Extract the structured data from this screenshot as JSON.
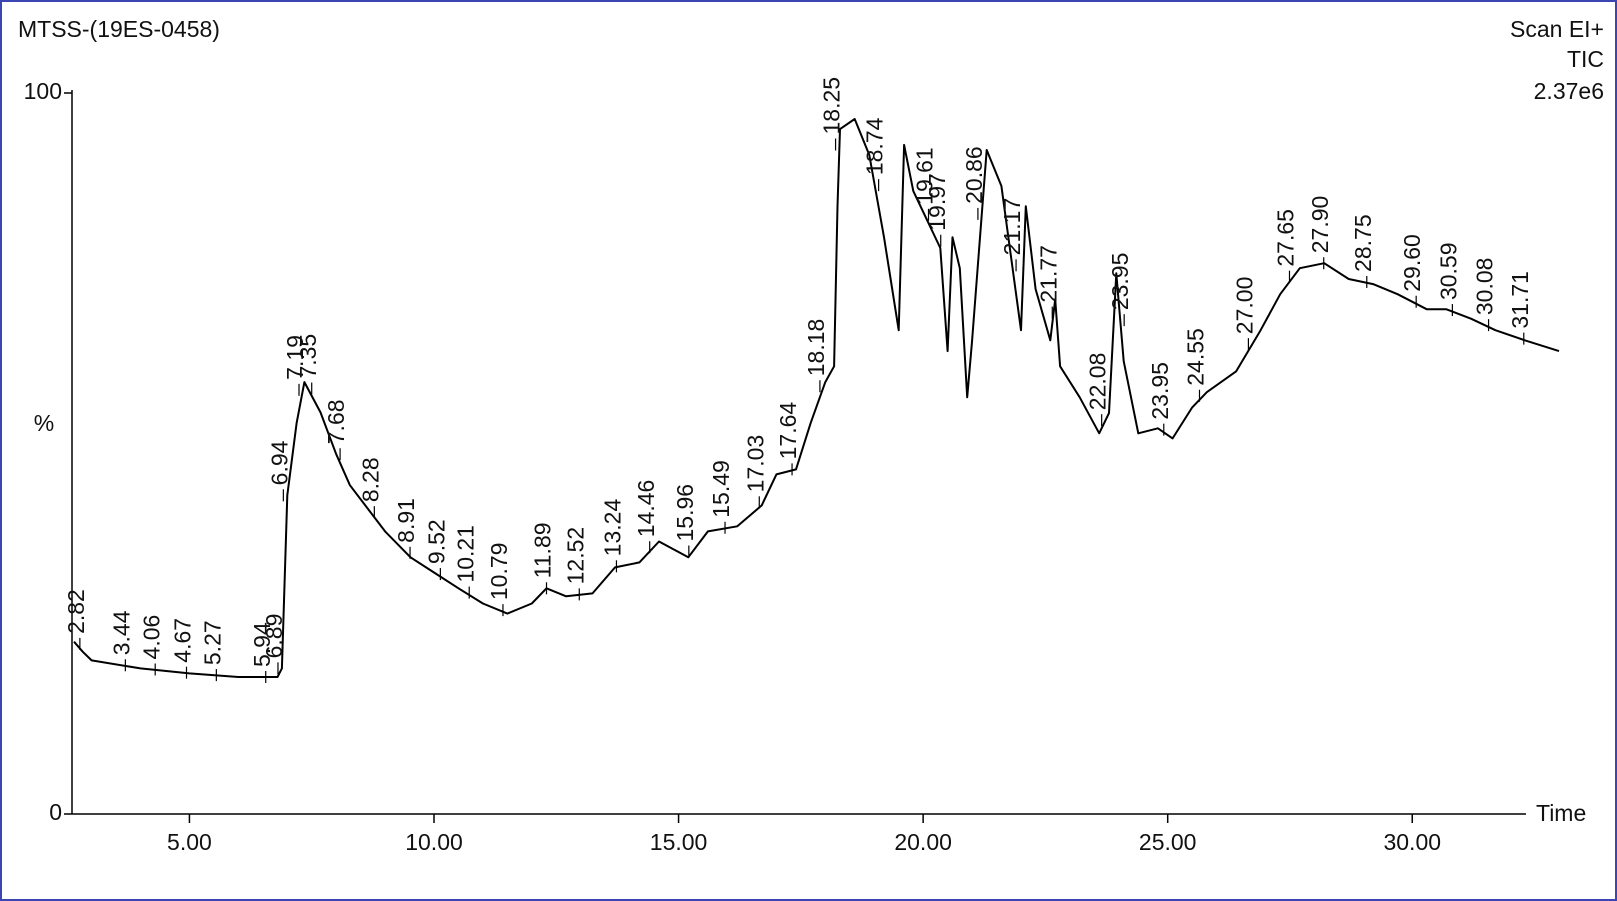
{
  "chart_data": {
    "type": "line",
    "title": "MTSS-(19ES-0458)",
    "scan_label": "Scan EI+",
    "trace_label": "TIC",
    "intensity_label": "2.37e6",
    "ylabel": "%",
    "xlabel": "Time",
    "color": "#000000",
    "xlim": [
      2.64,
      33.0
    ],
    "ylim": [
      0,
      100
    ],
    "xticks": [
      {
        "value": 5,
        "label": "5.00"
      },
      {
        "value": 10,
        "label": "10.00"
      },
      {
        "value": 15,
        "label": "15.00"
      },
      {
        "value": 20,
        "label": "20.00"
      },
      {
        "value": 25,
        "label": "25.00"
      },
      {
        "value": 30,
        "label": "30.00"
      }
    ],
    "yticks": [
      0,
      100
    ],
    "x": [
      2.64,
      2.82,
      3.0,
      4.0,
      5.0,
      6.0,
      6.8,
      6.89,
      7.0,
      7.19,
      7.35,
      7.68,
      8.0,
      8.28,
      9.0,
      9.52,
      10.0,
      10.5,
      11.0,
      11.5,
      12.0,
      12.3,
      12.7,
      13.24,
      13.7,
      14.2,
      14.6,
      15.2,
      15.6,
      16.2,
      16.7,
      17.0,
      17.4,
      17.7,
      18.0,
      18.18,
      18.25,
      18.3,
      18.6,
      18.9,
      19.2,
      19.5,
      19.61,
      19.8,
      20.1,
      20.35,
      20.5,
      20.6,
      20.75,
      20.9,
      21.0,
      21.3,
      21.6,
      21.8,
      22.0,
      22.1,
      22.3,
      22.6,
      22.7,
      22.8,
      23.2,
      23.6,
      23.8,
      23.95,
      24.1,
      24.4,
      24.8,
      25.1,
      25.5,
      25.8,
      26.4,
      26.9,
      27.3,
      27.7,
      28.2,
      28.7,
      29.2,
      29.7,
      30.3,
      30.7,
      31.2,
      31.7,
      32.3,
      33.0
    ],
    "values": [
      23.9,
      22.5,
      21.3,
      20.2,
      19.5,
      19.0,
      19.0,
      20.2,
      44.2,
      54.2,
      59.9,
      55.7,
      49.9,
      45.6,
      39.2,
      35.6,
      33.5,
      31.3,
      29.2,
      27.8,
      29.2,
      31.3,
      30.2,
      30.6,
      34.2,
      34.9,
      37.8,
      35.6,
      39.2,
      39.9,
      42.8,
      47.1,
      47.8,
      54.2,
      59.9,
      62.1,
      84.3,
      95.0,
      96.4,
      91.4,
      80.0,
      67.1,
      92.8,
      86.4,
      82.1,
      78.5,
      64.2,
      80.0,
      75.7,
      57.8,
      65.5,
      92.1,
      87.1,
      77.1,
      67.1,
      84.3,
      72.8,
      65.7,
      71.4,
      62.1,
      57.8,
      52.8,
      55.6,
      75.0,
      62.8,
      52.8,
      53.5,
      52.1,
      56.4,
      58.5,
      61.4,
      67.1,
      72.1,
      75.7,
      76.4,
      74.2,
      73.5,
      72.1,
      70.0,
      70.0,
      68.7,
      67.1,
      65.7,
      64.2
    ],
    "peak_labels": [
      {
        "x": 2.76,
        "label": "2.82"
      },
      {
        "x": 3.69,
        "label": "3.44"
      },
      {
        "x": 4.3,
        "label": "4.06"
      },
      {
        "x": 4.94,
        "label": "4.67"
      },
      {
        "x": 5.55,
        "label": "5.27"
      },
      {
        "x": 6.56,
        "label": "5.94"
      },
      {
        "x": 6.81,
        "label": "6.89"
      },
      {
        "x": 6.92,
        "label": "6.94"
      },
      {
        "x": 7.24,
        "label": "7.19"
      },
      {
        "x": 7.5,
        "label": "7.35"
      },
      {
        "x": 8.08,
        "label": "7.68"
      },
      {
        "x": 8.78,
        "label": "8.28"
      },
      {
        "x": 9.51,
        "label": "8.91"
      },
      {
        "x": 10.13,
        "label": "9.52"
      },
      {
        "x": 10.72,
        "label": "10.21"
      },
      {
        "x": 11.41,
        "label": "10.79"
      },
      {
        "x": 12.3,
        "label": "11.89"
      },
      {
        "x": 12.97,
        "label": "12.52"
      },
      {
        "x": 13.73,
        "label": "13.24"
      },
      {
        "x": 14.41,
        "label": "14.46"
      },
      {
        "x": 15.21,
        "label": "15.96"
      },
      {
        "x": 15.95,
        "label": "15.49"
      },
      {
        "x": 16.65,
        "label": "17.03"
      },
      {
        "x": 17.32,
        "label": "17.64"
      },
      {
        "x": 17.89,
        "label": "18.18"
      },
      {
        "x": 18.21,
        "label": "18.25"
      },
      {
        "x": 19.09,
        "label": "18.74"
      },
      {
        "x": 20.11,
        "label": "19.61"
      },
      {
        "x": 20.36,
        "label": "19.97"
      },
      {
        "x": 21.12,
        "label": "20.86"
      },
      {
        "x": 21.9,
        "label": "21.17"
      },
      {
        "x": 22.64,
        "label": "21.77"
      },
      {
        "x": 23.65,
        "label": "22.08"
      },
      {
        "x": 24.11,
        "label": "23.95"
      },
      {
        "x": 24.92,
        "label": "23.95"
      },
      {
        "x": 25.65,
        "label": "24.55"
      },
      {
        "x": 26.65,
        "label": "27.00"
      },
      {
        "x": 27.49,
        "label": "27.65"
      },
      {
        "x": 28.19,
        "label": "27.90"
      },
      {
        "x": 29.07,
        "label": "28.75"
      },
      {
        "x": 30.08,
        "label": "29.60"
      },
      {
        "x": 30.82,
        "label": "30.59"
      },
      {
        "x": 31.56,
        "label": "30.08"
      },
      {
        "x": 32.28,
        "label": "31.71"
      }
    ]
  }
}
